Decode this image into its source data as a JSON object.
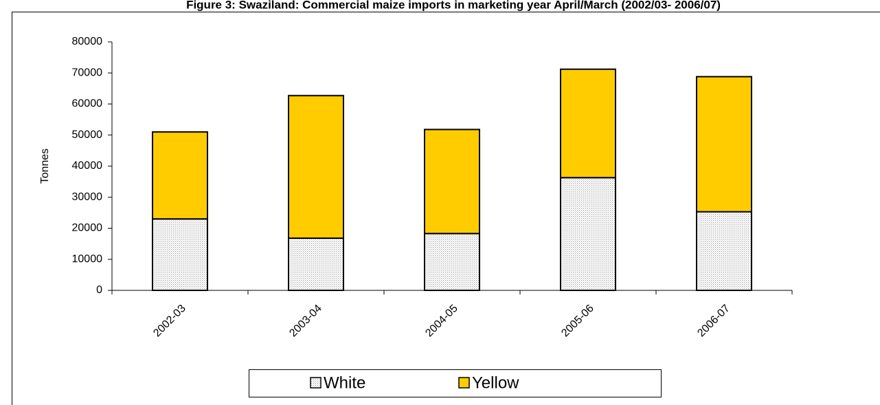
{
  "chart_data": {
    "type": "stacked_bar",
    "title": "Figure 3: Swaziland: Commercial maize imports in marketing year April/March (2002/03- 2006/07)",
    "y_label": "Tonnes",
    "categories": [
      "2002-03",
      "2003-04",
      "2004-05",
      "2005-06",
      "2006-07"
    ],
    "series": [
      {
        "name": "White",
        "color": "#e4e4e4",
        "values": [
          23000,
          16800,
          18300,
          36300,
          25300
        ]
      },
      {
        "name": "Yellow",
        "color": "#ffcc00",
        "values": [
          28000,
          45900,
          33500,
          34900,
          43500
        ]
      }
    ],
    "ylim": [
      0,
      80000
    ],
    "yticks": [
      0,
      10000,
      20000,
      30000,
      40000,
      50000,
      60000,
      70000,
      80000
    ],
    "legend": "bottom"
  }
}
